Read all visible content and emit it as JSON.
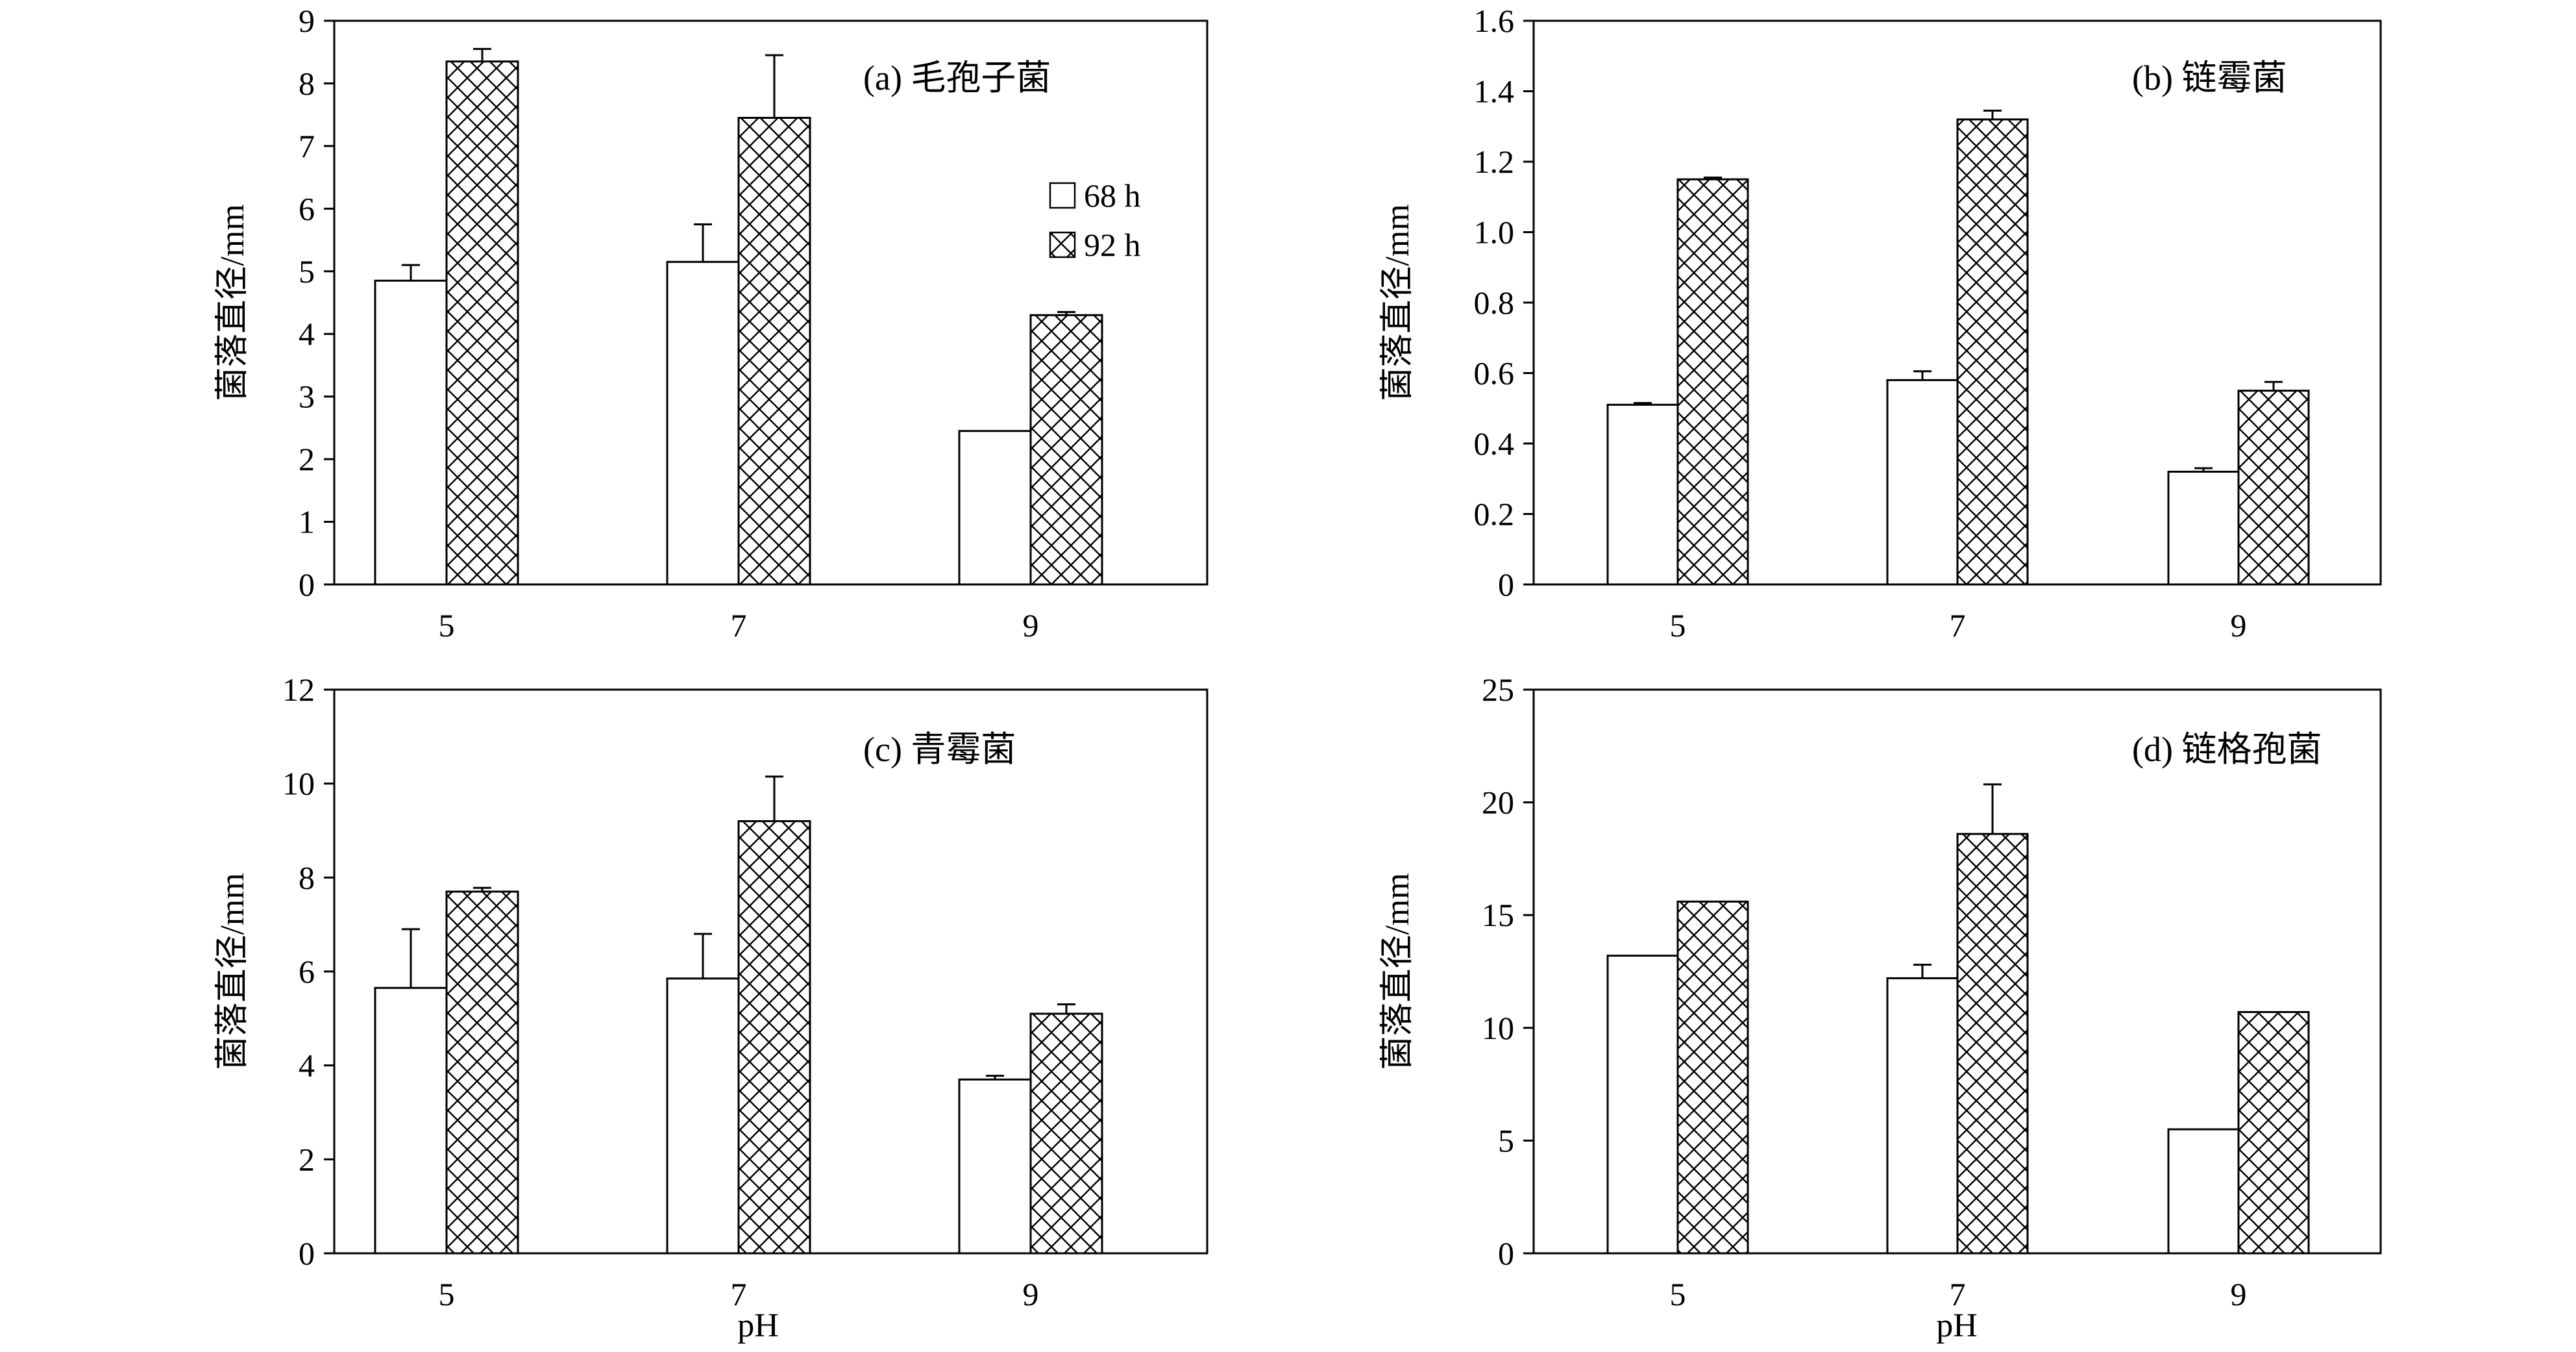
{
  "figure": {
    "xlabel": "pH",
    "legend": [
      {
        "name": "68 h",
        "pattern": "none"
      },
      {
        "name": "92 h",
        "pattern": "crosshatch"
      }
    ]
  },
  "chart_data": [
    {
      "type": "bar",
      "title": "(a) 毛孢子菌",
      "ylabel": "菌落直径/mm",
      "xlabel": "",
      "categories": [
        "5",
        "7",
        "9"
      ],
      "ylim": [
        0,
        9
      ],
      "yticks": [
        0,
        1,
        2,
        3,
        4,
        5,
        6,
        7,
        8,
        9
      ],
      "ytick_labels": [
        "0",
        "1",
        "2",
        "3",
        "4",
        "5",
        "6",
        "7",
        "8",
        "9"
      ],
      "series": [
        {
          "name": "68 h",
          "values": [
            4.85,
            5.15,
            2.45
          ],
          "errors": [
            0.25,
            0.6,
            0.0
          ]
        },
        {
          "name": "92 h",
          "values": [
            8.35,
            7.45,
            4.3
          ],
          "errors": [
            0.2,
            1.0,
            0.05
          ]
        }
      ],
      "legend": "inside-top-right"
    },
    {
      "type": "bar",
      "title": "(b) 链霉菌",
      "ylabel": "菌落直径/mm",
      "xlabel": "",
      "categories": [
        "5",
        "7",
        "9"
      ],
      "ylim": [
        0,
        1.6
      ],
      "yticks": [
        0,
        0.2,
        0.4,
        0.6,
        0.8,
        1.0,
        1.2,
        1.4,
        1.6
      ],
      "ytick_labels": [
        "0",
        "0.2",
        "0.4",
        "0.6",
        "0.8",
        "1.0",
        "1.2",
        "1.4",
        "1.6"
      ],
      "series": [
        {
          "name": "68 h",
          "values": [
            0.51,
            0.58,
            0.32
          ],
          "errors": [
            0.005,
            0.025,
            0.01
          ]
        },
        {
          "name": "92 h",
          "values": [
            1.15,
            1.32,
            0.55
          ],
          "errors": [
            0.005,
            0.025,
            0.025
          ]
        }
      ]
    },
    {
      "type": "bar",
      "title": "(c) 青霉菌",
      "ylabel": "菌落直径/mm",
      "xlabel": "pH",
      "categories": [
        "5",
        "7",
        "9"
      ],
      "ylim": [
        0,
        12
      ],
      "yticks": [
        0,
        2,
        4,
        6,
        8,
        10,
        12
      ],
      "ytick_labels": [
        "0",
        "2",
        "4",
        "6",
        "8",
        "10",
        "12"
      ],
      "series": [
        {
          "name": "68 h",
          "values": [
            5.65,
            5.85,
            3.7
          ],
          "errors": [
            1.25,
            0.95,
            0.08
          ]
        },
        {
          "name": "92 h",
          "values": [
            7.7,
            9.2,
            5.1
          ],
          "errors": [
            0.08,
            0.95,
            0.2
          ]
        }
      ]
    },
    {
      "type": "bar",
      "title": "(d) 链格孢菌",
      "ylabel": "菌落直径/mm",
      "xlabel": "pH",
      "categories": [
        "5",
        "7",
        "9"
      ],
      "ylim": [
        0,
        25
      ],
      "yticks": [
        0,
        5,
        10,
        15,
        20,
        25
      ],
      "ytick_labels": [
        "0",
        "5",
        "10",
        "15",
        "20",
        "25"
      ],
      "series": [
        {
          "name": "68 h",
          "values": [
            13.2,
            12.2,
            5.5
          ],
          "errors": [
            0.0,
            0.6,
            0.0
          ]
        },
        {
          "name": "92 h",
          "values": [
            15.6,
            18.6,
            10.7
          ],
          "errors": [
            0.0,
            2.2,
            0.0
          ]
        }
      ]
    }
  ]
}
